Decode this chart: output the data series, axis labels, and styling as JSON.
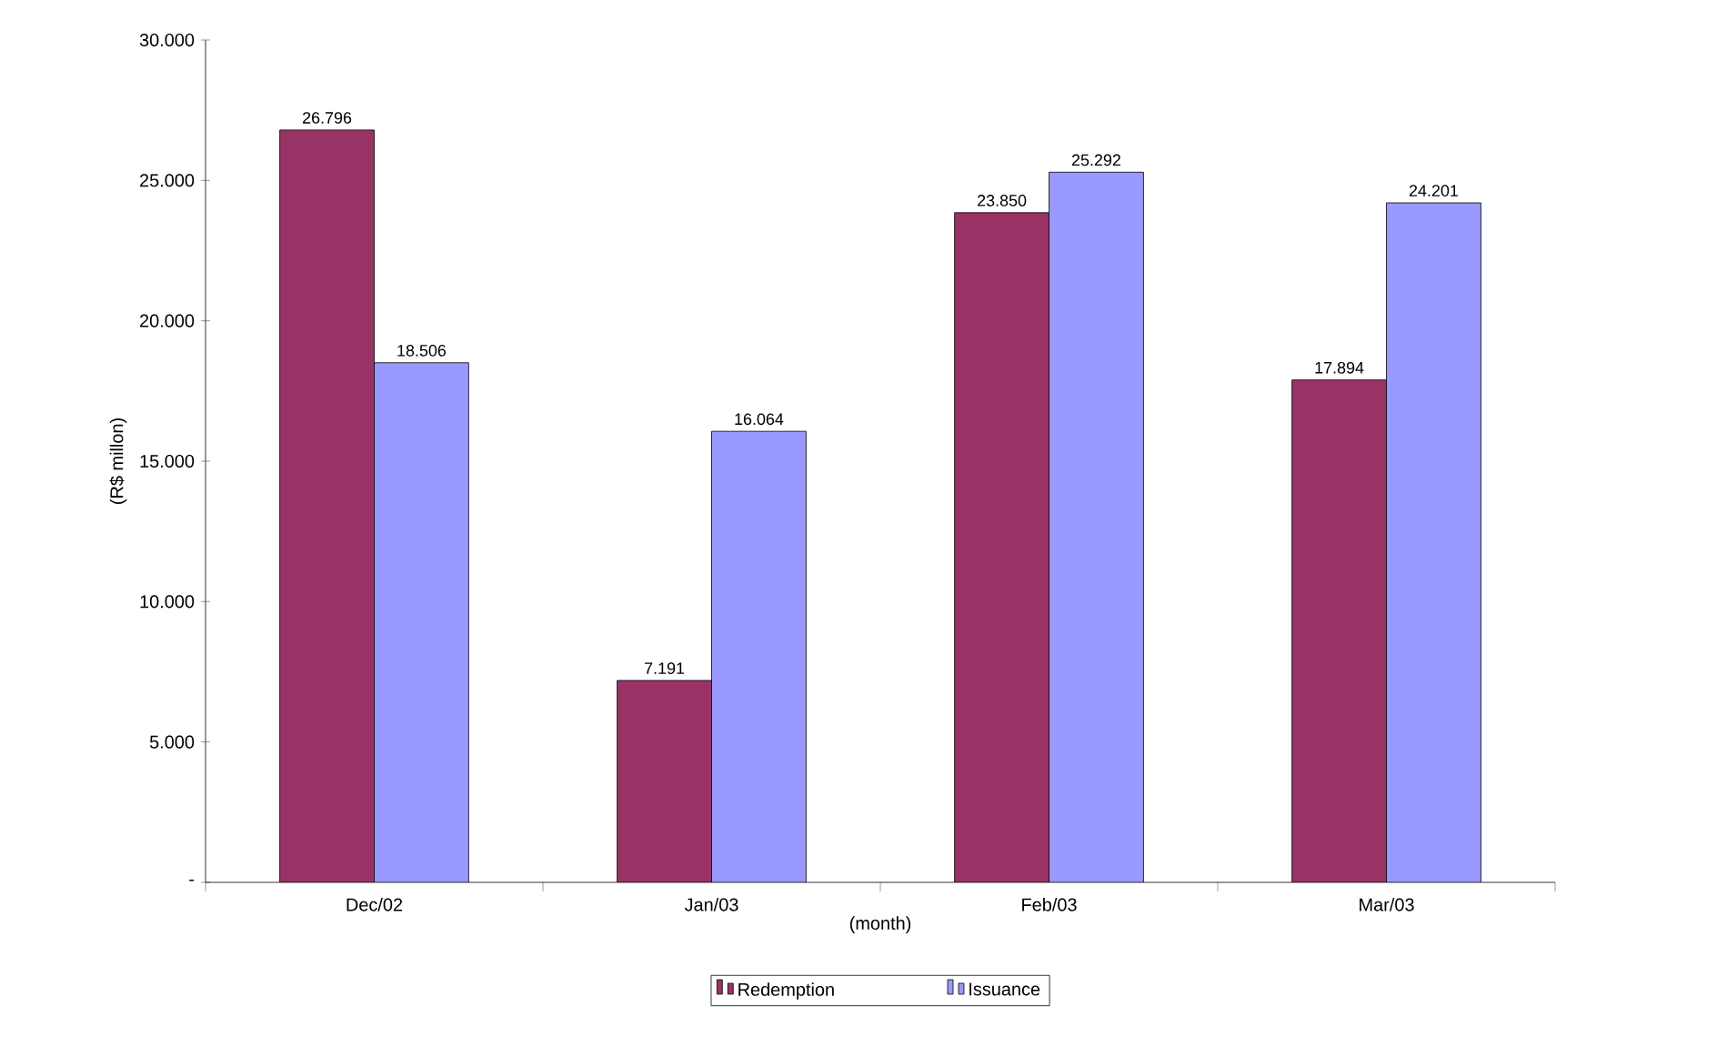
{
  "chart_data": {
    "type": "bar",
    "categories": [
      "Dec/02",
      "Jan/03",
      "Feb/03",
      "Mar/03"
    ],
    "series": [
      {
        "name": "Redemption",
        "color": "#993366",
        "values": [
          26796,
          7191,
          23850,
          17894
        ],
        "value_labels": [
          "26.796",
          "7.191",
          "23.850",
          "17.894"
        ]
      },
      {
        "name": "Issuance",
        "color": "#9999ff",
        "values": [
          18506,
          16064,
          25292,
          24201
        ],
        "value_labels": [
          "18.506",
          "16.064",
          "25.292",
          "24.201"
        ]
      }
    ],
    "xlabel": "(month)",
    "ylabel": "(R$ millon)",
    "ylim": [
      0,
      30000
    ],
    "yticks": [
      {
        "value": 0,
        "label": "-"
      },
      {
        "value": 5000,
        "label": "5.000"
      },
      {
        "value": 10000,
        "label": "10.000"
      },
      {
        "value": 15000,
        "label": "15.000"
      },
      {
        "value": 20000,
        "label": "20.000"
      },
      {
        "value": 25000,
        "label": "25.000"
      },
      {
        "value": 30000,
        "label": "30.000"
      }
    ],
    "grid": false,
    "legend": "bottom"
  }
}
